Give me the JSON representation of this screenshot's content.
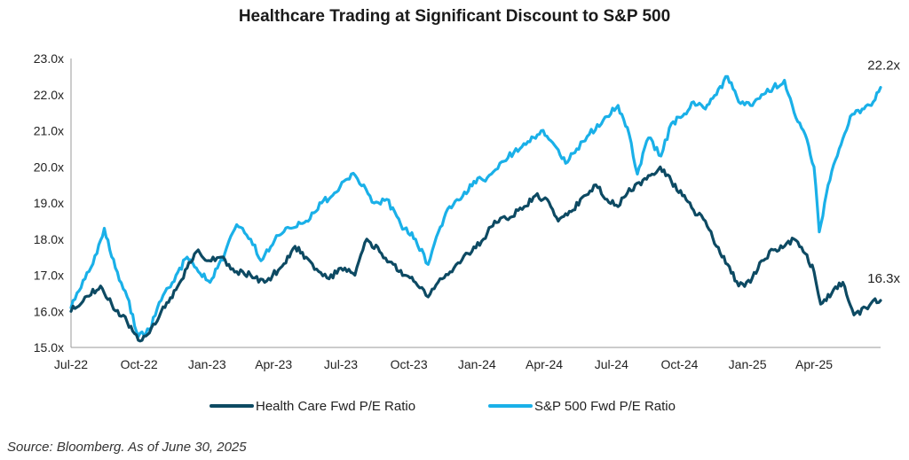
{
  "chart_data": {
    "type": "line",
    "title": "Healthcare Trading at Significant Discount to S&P 500",
    "xlabel": "",
    "ylabel": "",
    "ylim": [
      15.0,
      23.0
    ],
    "y_ticks": [
      "15.0x",
      "16.0x",
      "17.0x",
      "18.0x",
      "19.0x",
      "20.0x",
      "21.0x",
      "22.0x",
      "23.0x"
    ],
    "x_ticks": [
      "Jul-22",
      "Oct-22",
      "Jan-23",
      "Apr-23",
      "Jul-23",
      "Oct-23",
      "Jan-24",
      "Apr-24",
      "Jul-24",
      "Oct-24",
      "Jan-25",
      "Apr-25"
    ],
    "x_dates": [
      "2022-07",
      "2022-10",
      "2023-01",
      "2023-04",
      "2023-07",
      "2023-10",
      "2024-01",
      "2024-04",
      "2024-07",
      "2024-10",
      "2025-01",
      "2025-04"
    ],
    "series": [
      {
        "name": "Health Care Fwd P/E Ratio",
        "color": "#0d4a63",
        "end_label": "16.3x",
        "points": [
          [
            "2022-07-01",
            16.0
          ],
          [
            "2022-07-20",
            16.4
          ],
          [
            "2022-08-10",
            16.7
          ],
          [
            "2022-08-25",
            16.2
          ],
          [
            "2022-09-15",
            15.7
          ],
          [
            "2022-09-30",
            15.2
          ],
          [
            "2022-10-15",
            15.4
          ],
          [
            "2022-10-31",
            16.0
          ],
          [
            "2022-11-20",
            16.6
          ],
          [
            "2022-12-05",
            17.2
          ],
          [
            "2022-12-20",
            17.7
          ],
          [
            "2023-01-01",
            17.4
          ],
          [
            "2023-01-20",
            17.5
          ],
          [
            "2023-02-10",
            17.1
          ],
          [
            "2023-03-01",
            17.0
          ],
          [
            "2023-03-20",
            16.8
          ],
          [
            "2023-04-10",
            17.2
          ],
          [
            "2023-04-30",
            17.8
          ],
          [
            "2023-05-15",
            17.5
          ],
          [
            "2023-06-01",
            17.1
          ],
          [
            "2023-06-15",
            16.9
          ],
          [
            "2023-07-01",
            17.2
          ],
          [
            "2023-07-20",
            17.0
          ],
          [
            "2023-08-05",
            18.0
          ],
          [
            "2023-08-25",
            17.6
          ],
          [
            "2023-09-10",
            17.3
          ],
          [
            "2023-09-25",
            17.0
          ],
          [
            "2023-10-10",
            16.8
          ],
          [
            "2023-10-27",
            16.4
          ],
          [
            "2023-11-15",
            16.9
          ],
          [
            "2023-12-01",
            17.2
          ],
          [
            "2023-12-20",
            17.6
          ],
          [
            "2024-01-10",
            18.0
          ],
          [
            "2024-01-25",
            18.5
          ],
          [
            "2024-02-15",
            18.6
          ],
          [
            "2024-03-05",
            18.9
          ],
          [
            "2024-03-20",
            19.2
          ],
          [
            "2024-04-05",
            19.1
          ],
          [
            "2024-04-20",
            18.5
          ],
          [
            "2024-05-10",
            18.8
          ],
          [
            "2024-05-25",
            19.2
          ],
          [
            "2024-06-10",
            19.5
          ],
          [
            "2024-06-25",
            19.1
          ],
          [
            "2024-07-10",
            18.9
          ],
          [
            "2024-07-25",
            19.4
          ],
          [
            "2024-08-10",
            19.5
          ],
          [
            "2024-08-25",
            19.8
          ],
          [
            "2024-09-05",
            20.0
          ],
          [
            "2024-09-20",
            19.6
          ],
          [
            "2024-10-05",
            19.2
          ],
          [
            "2024-10-20",
            18.8
          ],
          [
            "2024-11-05",
            18.5
          ],
          [
            "2024-11-20",
            17.8
          ],
          [
            "2024-12-05",
            17.3
          ],
          [
            "2024-12-20",
            16.7
          ],
          [
            "2025-01-05",
            16.8
          ],
          [
            "2025-01-20",
            17.4
          ],
          [
            "2025-02-05",
            17.7
          ],
          [
            "2025-02-20",
            17.8
          ],
          [
            "2025-03-05",
            18.0
          ],
          [
            "2025-03-20",
            17.6
          ],
          [
            "2025-04-01",
            17.1
          ],
          [
            "2025-04-10",
            16.2
          ],
          [
            "2025-04-25",
            16.5
          ],
          [
            "2025-05-10",
            16.8
          ],
          [
            "2025-05-25",
            15.9
          ],
          [
            "2025-06-10",
            16.1
          ],
          [
            "2025-06-20",
            16.3
          ],
          [
            "2025-06-30",
            16.3
          ]
        ]
      },
      {
        "name": "S&P 500 Fwd P/E Ratio",
        "color": "#1ab0e8",
        "end_label": "22.2x",
        "points": [
          [
            "2022-07-01",
            16.1
          ],
          [
            "2022-07-20",
            16.9
          ],
          [
            "2022-08-05",
            17.6
          ],
          [
            "2022-08-15",
            18.3
          ],
          [
            "2022-08-30",
            17.2
          ],
          [
            "2022-09-15",
            16.4
          ],
          [
            "2022-09-30",
            15.3
          ],
          [
            "2022-10-15",
            15.5
          ],
          [
            "2022-10-31",
            16.3
          ],
          [
            "2022-11-20",
            17.0
          ],
          [
            "2022-12-05",
            17.5
          ],
          [
            "2022-12-20",
            17.1
          ],
          [
            "2023-01-05",
            16.8
          ],
          [
            "2023-01-25",
            17.6
          ],
          [
            "2023-02-10",
            18.4
          ],
          [
            "2023-03-01",
            18.0
          ],
          [
            "2023-03-15",
            17.4
          ],
          [
            "2023-04-05",
            18.1
          ],
          [
            "2023-04-25",
            18.3
          ],
          [
            "2023-05-15",
            18.5
          ],
          [
            "2023-06-05",
            19.0
          ],
          [
            "2023-06-25",
            19.3
          ],
          [
            "2023-07-15",
            19.8
          ],
          [
            "2023-08-01",
            19.5
          ],
          [
            "2023-08-15",
            19.0
          ],
          [
            "2023-09-01",
            19.1
          ],
          [
            "2023-09-20",
            18.4
          ],
          [
            "2023-10-10",
            18.0
          ],
          [
            "2023-10-27",
            17.3
          ],
          [
            "2023-11-10",
            18.2
          ],
          [
            "2023-11-25",
            18.9
          ],
          [
            "2023-12-10",
            19.1
          ],
          [
            "2023-12-28",
            19.6
          ],
          [
            "2024-01-15",
            19.7
          ],
          [
            "2024-02-01",
            20.1
          ],
          [
            "2024-02-20",
            20.4
          ],
          [
            "2024-03-10",
            20.7
          ],
          [
            "2024-03-28",
            21.0
          ],
          [
            "2024-04-15",
            20.6
          ],
          [
            "2024-04-30",
            20.1
          ],
          [
            "2024-05-15",
            20.5
          ],
          [
            "2024-06-01",
            20.9
          ],
          [
            "2024-06-20",
            21.3
          ],
          [
            "2024-07-10",
            21.7
          ],
          [
            "2024-07-25",
            20.9
          ],
          [
            "2024-08-05",
            19.8
          ],
          [
            "2024-08-20",
            20.8
          ],
          [
            "2024-09-06",
            20.3
          ],
          [
            "2024-09-20",
            21.2
          ],
          [
            "2024-10-05",
            21.4
          ],
          [
            "2024-10-20",
            21.8
          ],
          [
            "2024-11-05",
            21.6
          ],
          [
            "2024-11-20",
            22.0
          ],
          [
            "2024-12-05",
            22.5
          ],
          [
            "2024-12-20",
            21.8
          ],
          [
            "2025-01-05",
            21.7
          ],
          [
            "2025-01-20",
            22.0
          ],
          [
            "2025-02-05",
            22.2
          ],
          [
            "2025-02-20",
            22.4
          ],
          [
            "2025-03-05",
            21.5
          ],
          [
            "2025-03-20",
            20.9
          ],
          [
            "2025-04-01",
            20.0
          ],
          [
            "2025-04-08",
            18.2
          ],
          [
            "2025-04-20",
            19.5
          ],
          [
            "2025-05-05",
            20.5
          ],
          [
            "2025-05-20",
            21.4
          ],
          [
            "2025-06-05",
            21.6
          ],
          [
            "2025-06-20",
            21.8
          ],
          [
            "2025-06-30",
            22.2
          ]
        ]
      }
    ],
    "legend_position": "bottom-center",
    "source": "Source: Bloomberg. As of June 30, 2025"
  }
}
